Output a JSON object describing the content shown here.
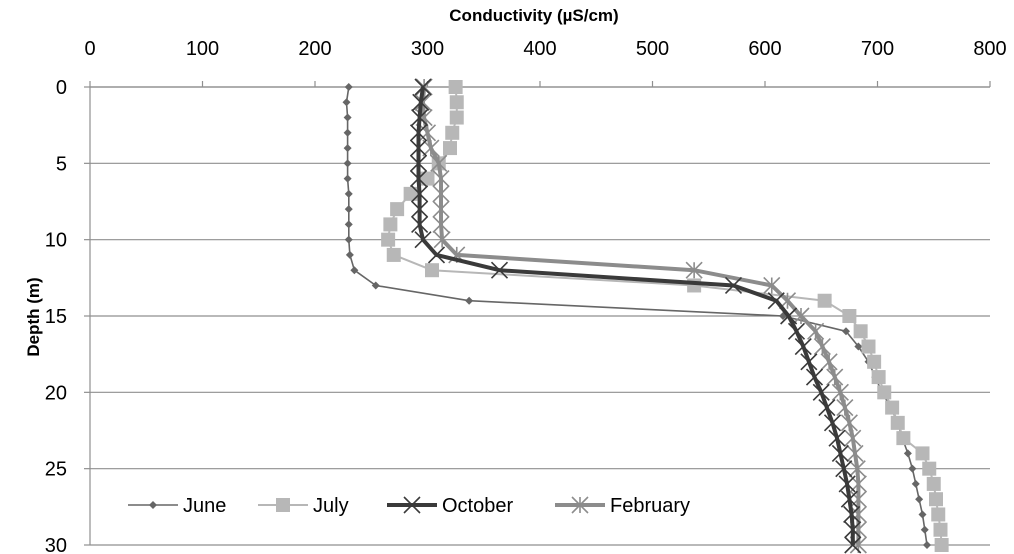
{
  "chart_data": {
    "type": "line",
    "xlabel": "Conductivity (µS/cm)",
    "ylabel": "Depth (m)",
    "xlim": [
      0,
      800
    ],
    "ylim": [
      0,
      30
    ],
    "x_ticks": [
      0,
      100,
      200,
      300,
      400,
      500,
      600,
      700,
      800
    ],
    "y_ticks": [
      0,
      5,
      10,
      15,
      20,
      25,
      30
    ],
    "x_axis_position": "top",
    "y_axis_inverted": true,
    "grid": "horizontal",
    "legend_position": "bottom-left",
    "series": [
      {
        "name": "June",
        "color": "#666666",
        "marker": "diamond",
        "depth": [
          0,
          1,
          2,
          3,
          4,
          5,
          6,
          7,
          8,
          9,
          10,
          11,
          12,
          13,
          14,
          15,
          16,
          17,
          18,
          19,
          20,
          21,
          22,
          23,
          24,
          25,
          26,
          27,
          28,
          29,
          30
        ],
        "conductivity": [
          230,
          228,
          229,
          229,
          229,
          229,
          229,
          230,
          230,
          230,
          230,
          231,
          235,
          254,
          337,
          616,
          672,
          683,
          692,
          698,
          704,
          712,
          718,
          722,
          727,
          731,
          734,
          737,
          740,
          742,
          744
        ]
      },
      {
        "name": "July",
        "color": "#b7b7b7",
        "marker": "square",
        "depth": [
          0,
          1,
          2,
          3,
          4,
          5,
          6,
          7,
          8,
          9,
          10,
          11,
          12,
          13,
          14,
          15,
          16,
          17,
          18,
          19,
          20,
          21,
          22,
          23,
          24,
          25,
          26,
          27,
          28,
          29,
          30
        ],
        "conductivity": [
          325,
          326,
          326,
          322,
          320,
          310,
          300,
          285,
          273,
          267,
          265,
          270,
          304,
          537,
          653,
          675,
          685,
          692,
          697,
          701,
          706,
          713,
          718,
          723,
          740,
          746,
          750,
          752,
          754,
          756,
          757
        ]
      },
      {
        "name": "October",
        "color": "#3a3a3a",
        "marker": "x",
        "depth": [
          0,
          1,
          2,
          3,
          4,
          5,
          6,
          7,
          8,
          9,
          10,
          11,
          12,
          13,
          14,
          15,
          16,
          17,
          18,
          19,
          20,
          21,
          22,
          23,
          24,
          25,
          26,
          27,
          28,
          29,
          30
        ],
        "conductivity": [
          296,
          294,
          293,
          292,
          292,
          292,
          292,
          293,
          293,
          293,
          296,
          308,
          364,
          572,
          610,
          621,
          628,
          634,
          639,
          644,
          650,
          655,
          660,
          664,
          667,
          670,
          673,
          675,
          677,
          678,
          678
        ]
      },
      {
        "name": "February",
        "color": "#8c8c8c",
        "marker": "asterisk",
        "depth": [
          0,
          1,
          2,
          3,
          4,
          5,
          6,
          7,
          8,
          9,
          10,
          11,
          12,
          13,
          14,
          15,
          16,
          17,
          18,
          19,
          20,
          21,
          22,
          23,
          24,
          25,
          26,
          27,
          28,
          29,
          30
        ],
        "conductivity": [
          297,
          296,
          297,
          300,
          303,
          310,
          312,
          312,
          312,
          312,
          313,
          326,
          537,
          606,
          620,
          632,
          645,
          651,
          657,
          662,
          667,
          671,
          675,
          678,
          680,
          682,
          683,
          683,
          683,
          683,
          683
        ]
      }
    ]
  }
}
